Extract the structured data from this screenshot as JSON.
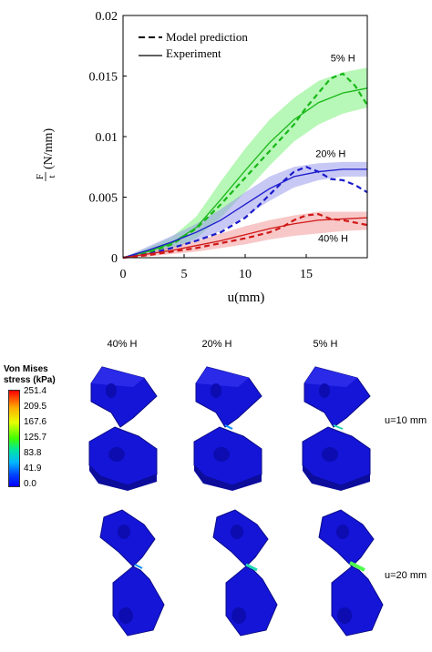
{
  "chart_data": {
    "type": "line",
    "xlabel": "u(mm)",
    "ylabel_frac_num": "F",
    "ylabel_frac_den": "t",
    "ylabel_unit": "(N/mm)",
    "xlim": [
      0,
      20
    ],
    "ylim": [
      0,
      0.02
    ],
    "x_ticks": [
      "0",
      "5",
      "10",
      "15"
    ],
    "y_ticks": [
      "0",
      "0.005",
      "0.01",
      "0.015",
      "0.02"
    ],
    "legend": [
      {
        "style": "dashed",
        "label": "Model prediction"
      },
      {
        "style": "solid",
        "label": "Experiment"
      }
    ],
    "legend_position": "top-left",
    "series": [
      {
        "group": "5% H",
        "color": "#18b818",
        "band_color": "#7cf07c",
        "experiment_x": [
          0,
          2,
          4,
          6,
          8,
          10,
          12,
          14,
          16,
          18,
          20
        ],
        "experiment_y": [
          0,
          0.0005,
          0.0012,
          0.0025,
          0.0048,
          0.0072,
          0.0095,
          0.0114,
          0.0128,
          0.0136,
          0.014
        ],
        "band_lower": [
          0,
          0.0002,
          0.0007,
          0.0016,
          0.0033,
          0.0054,
          0.0076,
          0.0096,
          0.011,
          0.0119,
          0.0124
        ],
        "band_upper": [
          0,
          0.0008,
          0.0017,
          0.0034,
          0.0063,
          0.009,
          0.0114,
          0.0132,
          0.0146,
          0.0153,
          0.0157
        ],
        "model_x": [
          0,
          2,
          4,
          6,
          8,
          10,
          11,
          12,
          13,
          14,
          15,
          16,
          17,
          18,
          19,
          20
        ],
        "model_y": [
          0,
          0.0004,
          0.0011,
          0.0024,
          0.0044,
          0.0066,
          0.0077,
          0.0088,
          0.0099,
          0.011,
          0.0124,
          0.0136,
          0.0148,
          0.0152,
          0.0142,
          0.0126
        ]
      },
      {
        "group": "20% H",
        "color": "#1a1acc",
        "band_color": "#9a9aec",
        "experiment_x": [
          0,
          2,
          4,
          6,
          8,
          10,
          12,
          14,
          16,
          18,
          20
        ],
        "experiment_y": [
          0,
          0.0006,
          0.0013,
          0.0021,
          0.0031,
          0.0044,
          0.0057,
          0.0067,
          0.0071,
          0.0073,
          0.0073
        ],
        "band_lower": [
          0,
          0.0003,
          0.0008,
          0.0014,
          0.0022,
          0.0034,
          0.0047,
          0.0058,
          0.0064,
          0.0067,
          0.0067
        ],
        "band_upper": [
          0,
          0.0009,
          0.0018,
          0.0028,
          0.004,
          0.0054,
          0.0067,
          0.0075,
          0.0078,
          0.0079,
          0.0079
        ],
        "model_x": [
          0,
          2,
          4,
          6,
          8,
          10,
          11,
          12,
          13,
          14,
          15,
          16,
          17,
          18,
          19,
          20
        ],
        "model_y": [
          0,
          0.0003,
          0.0008,
          0.0014,
          0.0021,
          0.0033,
          0.0042,
          0.0052,
          0.0062,
          0.0071,
          0.0075,
          0.0071,
          0.0065,
          0.0064,
          0.006,
          0.0054
        ]
      },
      {
        "group": "40% H",
        "color": "#d01818",
        "band_color": "#f29a9a",
        "experiment_x": [
          0,
          2,
          4,
          6,
          8,
          10,
          12,
          14,
          16,
          18,
          20
        ],
        "experiment_y": [
          0,
          0.0003,
          0.0006,
          0.001,
          0.0014,
          0.0019,
          0.0024,
          0.0028,
          0.0031,
          0.0032,
          0.0033
        ],
        "band_lower": [
          0,
          0.0001,
          0.0003,
          0.0005,
          0.0008,
          0.0011,
          0.0015,
          0.0018,
          0.002,
          0.0022,
          0.0023
        ],
        "band_upper": [
          0,
          0.0005,
          0.0009,
          0.0014,
          0.002,
          0.0026,
          0.0031,
          0.0035,
          0.0038,
          0.0038,
          0.0038
        ],
        "model_x": [
          0,
          2,
          4,
          6,
          8,
          10,
          12,
          13,
          14,
          15,
          16,
          17,
          18,
          19,
          20
        ],
        "model_y": [
          0,
          0.0002,
          0.0005,
          0.0008,
          0.0012,
          0.0016,
          0.0021,
          0.0025,
          0.0031,
          0.0035,
          0.0036,
          0.0032,
          0.0031,
          0.0029,
          0.0027
        ]
      }
    ]
  },
  "simulation": {
    "column_headers": [
      "40% H",
      "20% H",
      "5% H"
    ],
    "row_headers": [
      "u=10 mm",
      "u=20 mm"
    ],
    "colorbar_title": "Von Mises stress (kPa)",
    "colorbar_labels": [
      "251.4",
      "209.5",
      "167.6",
      "125.7",
      "83.8",
      "41.9",
      "0.0"
    ],
    "model_color": "#1414e6",
    "crack_colors": [
      "#0a8cff",
      "#22d8b0",
      "#4dff4d"
    ]
  }
}
